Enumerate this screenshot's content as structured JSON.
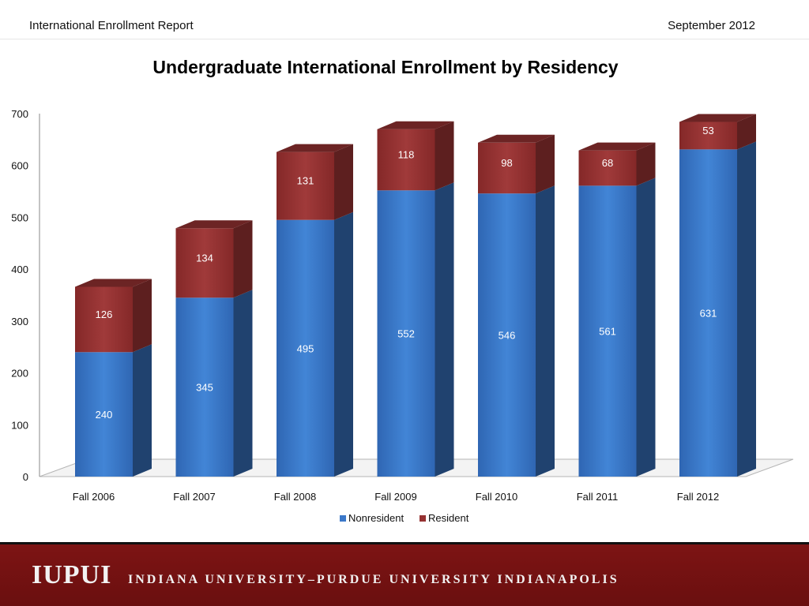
{
  "header": {
    "left_text": "International Enrollment Report",
    "right_text": "September 2012"
  },
  "colors": {
    "nonresident": "#3b78c9",
    "resident": "#963232",
    "footer_bg": "#781414"
  },
  "footer": {
    "logo_mark": "IUPUI",
    "logo_name": "INDIANA UNIVERSITY–PURDUE UNIVERSITY INDIANAPOLIS"
  },
  "chart_data": {
    "type": "bar",
    "stacked": true,
    "three_d": true,
    "title": "Undergraduate International Enrollment by Residency",
    "xlabel": "",
    "ylabel": "",
    "categories": [
      "Fall 2006",
      "Fall 2007",
      "Fall 2008",
      "Fall 2009",
      "Fall 2010",
      "Fall 2011",
      "Fall 2012"
    ],
    "series": [
      {
        "name": "Nonresident",
        "values": [
          240,
          345,
          495,
          552,
          546,
          561,
          631
        ]
      },
      {
        "name": "Resident",
        "values": [
          126,
          134,
          131,
          118,
          98,
          68,
          53
        ]
      }
    ],
    "ylim": [
      0,
      700
    ],
    "yticks": [
      0,
      100,
      200,
      300,
      400,
      500,
      600,
      700
    ],
    "legend_position": "bottom",
    "grid": false,
    "data_labels": true
  }
}
